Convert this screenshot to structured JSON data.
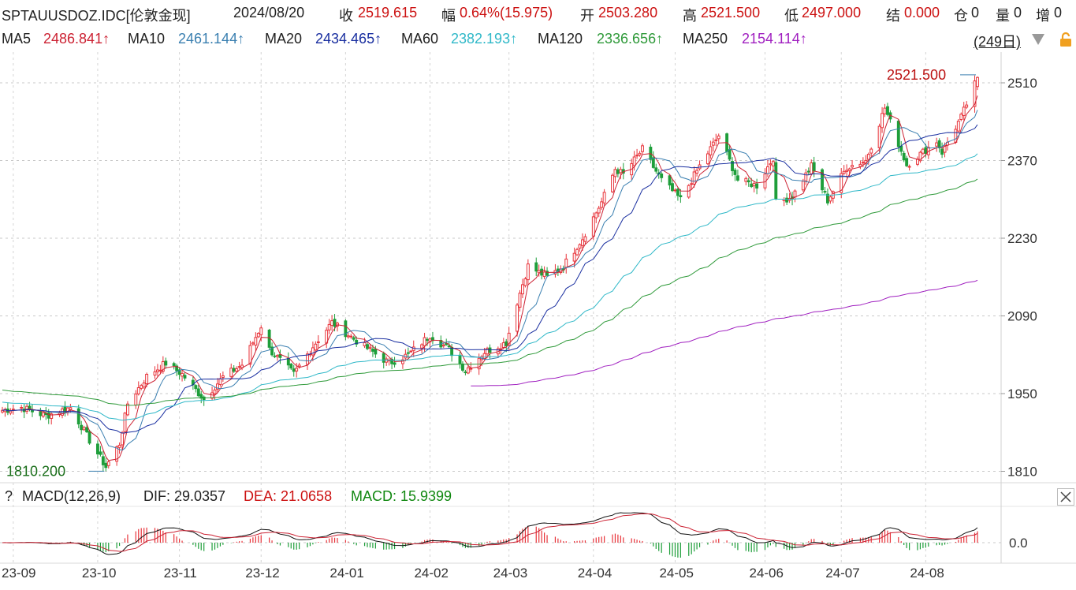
{
  "header": {
    "symbol": "SPTAUUSDOZ.IDC[伦敦金现]",
    "date": "2024/08/20",
    "close_label": "收",
    "close_value": "2519.615",
    "change_label": "幅",
    "change_value": "0.64%(15.975)",
    "open_label": "开",
    "open_value": "2503.280",
    "high_label": "高",
    "high_value": "2521.500",
    "low_label": "低",
    "low_value": "2497.000",
    "settle_label": "结",
    "settle_value": "0.000",
    "position_label": "仓",
    "position_value": "0",
    "volume_label": "量",
    "volume_value": "0",
    "increase_label": "增",
    "increase_value": "0"
  },
  "ma_bar": {
    "items": [
      {
        "label": "MA5",
        "value": "2486.841↑",
        "color": "#cc2233"
      },
      {
        "label": "MA10",
        "value": "2461.144↑",
        "color": "#3a7fb0"
      },
      {
        "label": "MA20",
        "value": "2434.465↑",
        "color": "#1a2fa0"
      },
      {
        "label": "MA60",
        "value": "2382.193↑",
        "color": "#2fb8c8"
      },
      {
        "label": "MA120",
        "value": "2336.656↑",
        "color": "#2f9a3a"
      },
      {
        "label": "MA250",
        "value": "2154.114↑",
        "color": "#a020c0"
      }
    ],
    "days": "(249日)"
  },
  "macd_bar": {
    "help": "?",
    "title": "MACD(12,26,9)",
    "dif": "DIF: 29.0357",
    "dea": "DEA: 21.0658",
    "macd": "MACD: 15.9399"
  },
  "chart_data": {
    "type": "candlestick",
    "y_ticks": [
      1810,
      1950,
      2090,
      2230,
      2370,
      2510
    ],
    "ylim": [
      1805,
      2540
    ],
    "x_ticks": [
      "23-09",
      "23-10",
      "23-11",
      "23-12",
      "24-01",
      "24-02",
      "24-03",
      "24-04",
      "24-05",
      "24-06",
      "24-07",
      "24-08"
    ],
    "high_annotation": "2521.500",
    "low_annotation": "1810.200",
    "macd_ticks": [
      "0.0"
    ],
    "anchors": [
      [
        "2023-08-28",
        1920
      ],
      [
        "2023-09-04",
        1925
      ],
      [
        "2023-09-13",
        1910
      ],
      [
        "2023-09-22",
        1925
      ],
      [
        "2023-09-29",
        1866
      ],
      [
        "2023-10-05",
        1818
      ],
      [
        "2023-10-10",
        1860
      ],
      [
        "2023-10-13",
        1932
      ],
      [
        "2023-10-20",
        1981
      ],
      [
        "2023-10-27",
        2005
      ],
      [
        "2023-11-02",
        1985
      ],
      [
        "2023-11-10",
        1940
      ],
      [
        "2023-11-17",
        1980
      ],
      [
        "2023-11-24",
        2002
      ],
      [
        "2023-12-01",
        2072
      ],
      [
        "2023-12-04",
        2030
      ],
      [
        "2023-12-13",
        1985
      ],
      [
        "2023-12-20",
        2035
      ],
      [
        "2023-12-27",
        2078
      ],
      [
        "2024-01-05",
        2045
      ],
      [
        "2024-01-17",
        2005
      ],
      [
        "2024-01-24",
        2020
      ],
      [
        "2024-02-01",
        2055
      ],
      [
        "2024-02-08",
        2030
      ],
      [
        "2024-02-14",
        1992
      ],
      [
        "2024-02-21",
        2025
      ],
      [
        "2024-02-29",
        2042
      ],
      [
        "2024-03-04",
        2115
      ],
      [
        "2024-03-08",
        2180
      ],
      [
        "2024-03-15",
        2160
      ],
      [
        "2024-03-21",
        2180
      ],
      [
        "2024-03-28",
        2230
      ],
      [
        "2024-04-04",
        2295
      ],
      [
        "2024-04-09",
        2355
      ],
      [
        "2024-04-12",
        2345
      ],
      [
        "2024-04-19",
        2390
      ],
      [
        "2024-04-26",
        2335
      ],
      [
        "2024-05-03",
        2300
      ],
      [
        "2024-05-10",
        2360
      ],
      [
        "2024-05-17",
        2415
      ],
      [
        "2024-05-24",
        2335
      ],
      [
        "2024-05-31",
        2325
      ],
      [
        "2024-06-06",
        2375
      ],
      [
        "2024-06-07",
        2295
      ],
      [
        "2024-06-13",
        2305
      ],
      [
        "2024-06-20",
        2360
      ],
      [
        "2024-06-26",
        2298
      ],
      [
        "2024-07-03",
        2358
      ],
      [
        "2024-07-10",
        2370
      ],
      [
        "2024-07-17",
        2465
      ],
      [
        "2024-07-25",
        2362
      ],
      [
        "2024-08-05",
        2405
      ],
      [
        "2024-08-07",
        2385
      ],
      [
        "2024-08-14",
        2448
      ],
      [
        "2024-08-20",
        2519
      ]
    ],
    "ma_endpoints": {
      "MA5": 2486.841,
      "MA10": 2461.144,
      "MA20": 2434.465,
      "MA60": 2382.193,
      "MA120": 2336.656,
      "MA250": 2154.114
    }
  }
}
